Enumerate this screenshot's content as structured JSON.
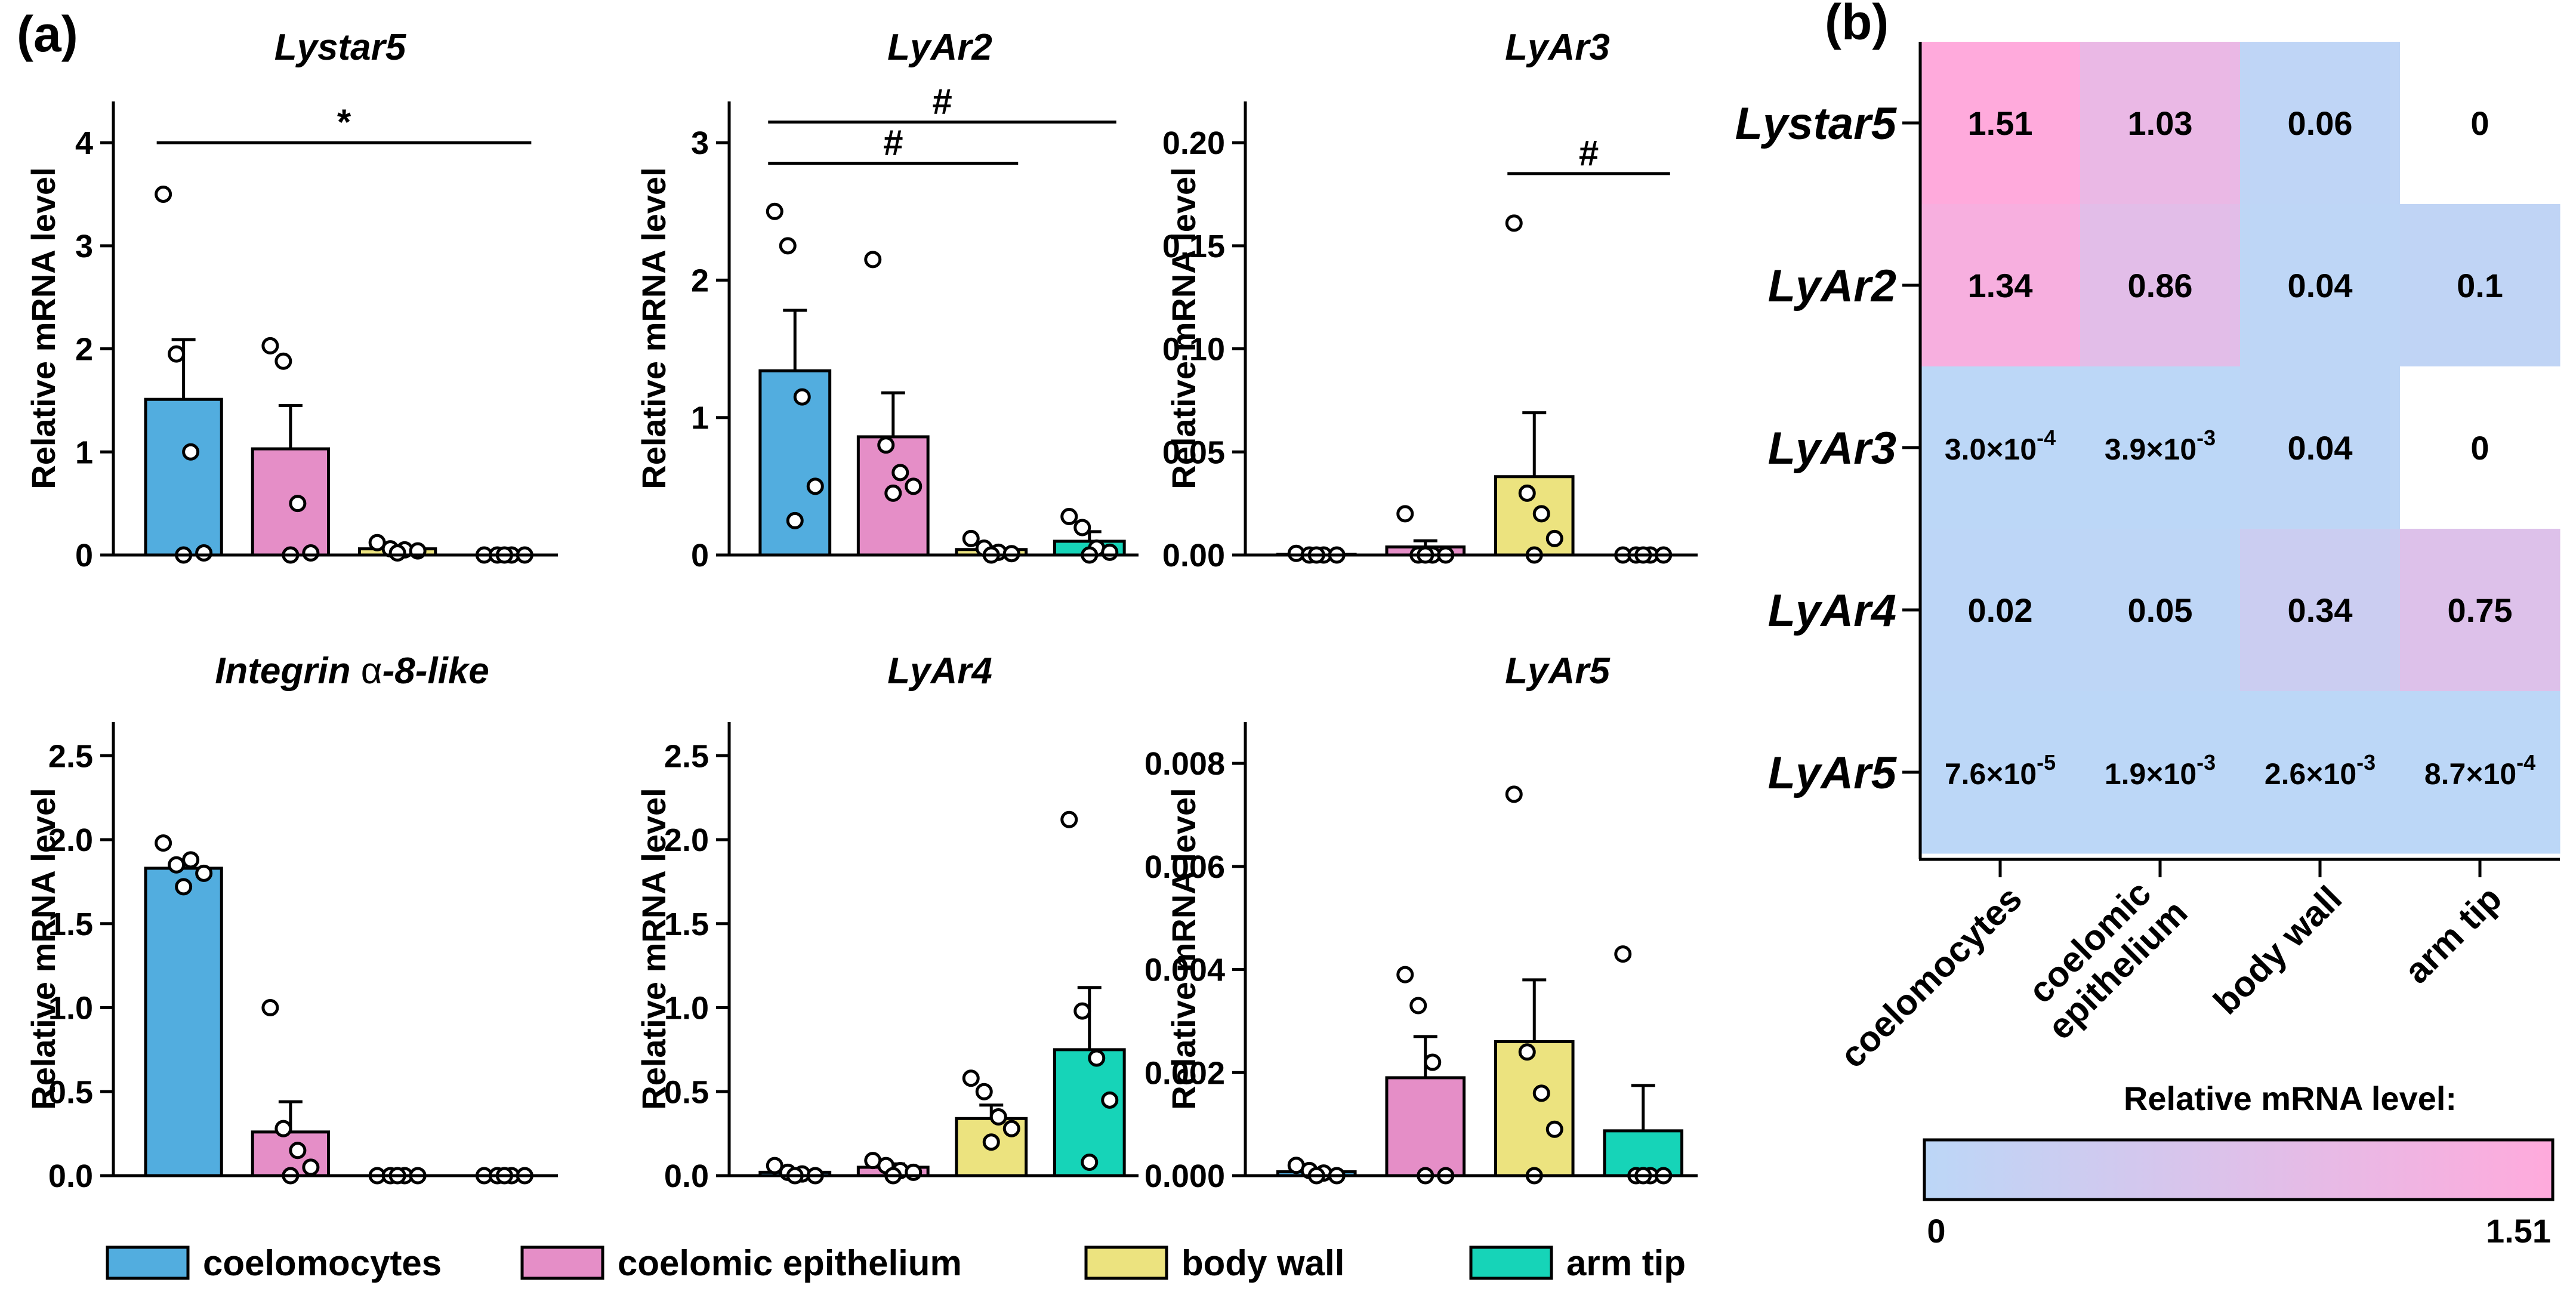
{
  "panels": {
    "a": "(a)",
    "b": "(b)"
  },
  "colors": {
    "coelomocytes": "#52addf",
    "coelomic epithelium": "#e58ec7",
    "body wall": "#ece37f",
    "arm tip": "#16d4b8",
    "heat_low": "#bcd7f7",
    "heat_high": "#ffaadc",
    "axis": "#000000"
  },
  "legend": {
    "items": [
      {
        "label": "coelomocytes",
        "color": "#52addf"
      },
      {
        "label": "coelomic epithelium",
        "color": "#e58ec7"
      },
      {
        "label": "body wall",
        "color": "#ece37f"
      },
      {
        "label": "arm tip",
        "color": "#16d4b8"
      }
    ]
  },
  "chart_data": [
    {
      "type": "bar",
      "title": "Lystar5",
      "ylabel": "Relative mRNA level",
      "categories": [
        "coelomocytes",
        "coelomic epithelium",
        "body wall",
        "arm tip"
      ],
      "values": [
        1.51,
        1.03,
        0.06,
        0.0
      ],
      "errors": [
        0.58,
        0.42,
        0.03,
        0.0
      ],
      "points": [
        [
          3.5,
          1.95,
          1.0,
          0.02,
          0.0
        ],
        [
          2.03,
          1.88,
          0.5,
          0.02,
          0.0
        ],
        [
          0.12,
          0.06,
          0.05,
          0.04,
          0.02
        ],
        [
          0.0,
          0.0,
          0.0,
          0.0,
          0.0
        ]
      ],
      "ylim": [
        0,
        4.4
      ],
      "yticks": [
        0,
        1,
        2,
        3,
        4
      ],
      "ticklabels": [
        "0",
        "1",
        "2",
        "3",
        "4"
      ],
      "significance": [
        {
          "from": 0,
          "to": 3,
          "value": 4.0,
          "label": "*"
        }
      ]
    },
    {
      "type": "bar",
      "title": "LyAr2",
      "ylabel": "Relative mRNA level",
      "categories": [
        "coelomocytes",
        "coelomic epithelium",
        "body wall",
        "arm tip"
      ],
      "values": [
        1.34,
        0.86,
        0.04,
        0.1
      ],
      "errors": [
        0.44,
        0.32,
        0.02,
        0.07
      ],
      "points": [
        [
          2.5,
          2.25,
          1.15,
          0.5,
          0.25
        ],
        [
          2.15,
          0.8,
          0.6,
          0.5,
          0.45
        ],
        [
          0.12,
          0.05,
          0.02,
          0.01,
          0.0
        ],
        [
          0.28,
          0.2,
          0.05,
          0.02,
          0.0
        ]
      ],
      "ylim": [
        0,
        3.3
      ],
      "yticks": [
        0,
        1,
        2,
        3
      ],
      "ticklabels": [
        "0",
        "1",
        "2",
        "3"
      ],
      "significance": [
        {
          "from": 0,
          "to": 3,
          "value": 3.15,
          "label": "#"
        },
        {
          "from": 0,
          "to": 2,
          "value": 2.85,
          "label": "#"
        }
      ]
    },
    {
      "type": "bar",
      "title": "LyAr3",
      "ylabel": "Relative mRNA level",
      "categories": [
        "coelomocytes",
        "coelomic epithelium",
        "body wall",
        "arm tip"
      ],
      "values": [
        0.0003,
        0.0039,
        0.038,
        0.0
      ],
      "errors": [
        0.0002,
        0.003,
        0.031,
        0.0
      ],
      "points": [
        [
          0.0008,
          0.0,
          0.0,
          0.0,
          0.0
        ],
        [
          0.02,
          0.0,
          0.0,
          0.0,
          0.0
        ],
        [
          0.161,
          0.03,
          0.02,
          0.008,
          0.0
        ],
        [
          0.0,
          0.0,
          0.0,
          0.0,
          0.0
        ]
      ],
      "ylim": [
        0,
        0.22
      ],
      "yticks": [
        0,
        0.05,
        0.1,
        0.15,
        0.2
      ],
      "ticklabels": [
        "0.00",
        "0.05",
        "0.10",
        "0.15",
        "0.20"
      ],
      "significance": [
        {
          "from": 2,
          "to": 3,
          "value": 0.185,
          "label": "#"
        }
      ]
    },
    {
      "type": "bar",
      "title": "Integrin α-8-like",
      "ylabel": "Relative mRNA level",
      "categories": [
        "coelomocytes",
        "coelomic epithelium",
        "body wall",
        "arm tip"
      ],
      "values": [
        1.83,
        0.26,
        0.0,
        0.0
      ],
      "errors": [
        0.05,
        0.18,
        0.0,
        0.0
      ],
      "points": [
        [
          1.98,
          1.85,
          1.88,
          1.8,
          1.72
        ],
        [
          1.0,
          0.28,
          0.15,
          0.05,
          0.0
        ],
        [
          0.0,
          0.0,
          0.0,
          0.0,
          0.0
        ],
        [
          0.0,
          0.0,
          0.0,
          0.0,
          0.0
        ]
      ],
      "ylim": [
        0,
        2.7
      ],
      "yticks": [
        0,
        0.5,
        1,
        1.5,
        2,
        2.5
      ],
      "ticklabels": [
        "0.0",
        "0.5",
        "1.0",
        "1.5",
        "2.0",
        "2.5"
      ],
      "significance": []
    },
    {
      "type": "bar",
      "title": "LyAr4",
      "ylabel": "Relative mRNA level",
      "categories": [
        "coelomocytes",
        "coelomic epithelium",
        "body wall",
        "arm tip"
      ],
      "values": [
        0.02,
        0.05,
        0.34,
        0.75
      ],
      "errors": [
        0.01,
        0.02,
        0.08,
        0.37
      ],
      "points": [
        [
          0.06,
          0.02,
          0.01,
          0.0,
          0.0
        ],
        [
          0.09,
          0.06,
          0.03,
          0.02,
          0.0
        ],
        [
          0.58,
          0.5,
          0.35,
          0.28,
          0.2
        ],
        [
          2.12,
          0.98,
          0.7,
          0.45,
          0.08
        ]
      ],
      "ylim": [
        0,
        2.7
      ],
      "yticks": [
        0,
        0.5,
        1,
        1.5,
        2,
        2.5
      ],
      "ticklabels": [
        "0.0",
        "0.5",
        "1.0",
        "1.5",
        "2.0",
        "2.5"
      ],
      "significance": []
    },
    {
      "type": "bar",
      "title": "LyAr5",
      "ylabel": "Relative mRNA level",
      "categories": [
        "coelomocytes",
        "coelomic epithelium",
        "body wall",
        "arm tip"
      ],
      "values": [
        7.6e-05,
        0.0019,
        0.0026,
        0.00087
      ],
      "errors": [
        3e-05,
        0.0008,
        0.0012,
        0.00088
      ],
      "points": [
        [
          0.0002,
          0.0001,
          5e-05,
          0.0,
          0.0
        ],
        [
          0.0039,
          0.0033,
          0.0022,
          0.0,
          0.0
        ],
        [
          0.0074,
          0.0024,
          0.0016,
          0.0009,
          0.0
        ],
        [
          0.0043,
          0.0,
          0.0,
          0.0,
          0.0
        ]
      ],
      "ylim": [
        0,
        0.0088
      ],
      "yticks": [
        0,
        0.002,
        0.004,
        0.006,
        0.008
      ],
      "ticklabels": [
        "0.000",
        "0.002",
        "0.004",
        "0.006",
        "0.008"
      ],
      "significance": []
    },
    {
      "type": "heatmap",
      "rows": [
        "Lystar5",
        "LyAr2",
        "LyAr3",
        "LyAr4",
        "LyAr5"
      ],
      "columns": [
        "coelomocytes",
        "coelomic epithelium",
        "body wall",
        "arm tip"
      ],
      "values": [
        [
          1.51,
          1.03,
          0.06,
          0.0
        ],
        [
          1.34,
          0.86,
          0.04,
          0.1
        ],
        [
          0.0003,
          0.0039,
          0.04,
          0.0
        ],
        [
          0.02,
          0.05,
          0.34,
          0.75
        ],
        [
          7.6e-05,
          0.0019,
          0.0026,
          0.00087
        ]
      ],
      "cell_labels": [
        [
          {
            "t": "1.51"
          },
          {
            "t": "1.03"
          },
          {
            "t": "0.06"
          },
          {
            "t": "0"
          }
        ],
        [
          {
            "t": "1.34"
          },
          {
            "t": "0.86"
          },
          {
            "t": "0.04"
          },
          {
            "t": "0.1"
          }
        ],
        [
          {
            "t": "3.0×10",
            "e": "-4"
          },
          {
            "t": "3.9×10",
            "e": "-3"
          },
          {
            "t": "0.04"
          },
          {
            "t": "0"
          }
        ],
        [
          {
            "t": "0.02"
          },
          {
            "t": "0.05"
          },
          {
            "t": "0.34"
          },
          {
            "t": "0.75"
          }
        ],
        [
          {
            "t": "7.6×10",
            "e": "-5"
          },
          {
            "t": "1.9×10",
            "e": "-3"
          },
          {
            "t": "2.6×10",
            "e": "-3"
          },
          {
            "t": "8.7×10",
            "e": "-4"
          }
        ]
      ],
      "white_cells": [
        [
          0,
          3
        ],
        [
          2,
          3
        ]
      ],
      "column_labels": [
        [
          "coelomocytes"
        ],
        [
          "coelomic",
          "epithelium"
        ],
        [
          "body wall"
        ],
        [
          "arm tip"
        ]
      ],
      "colorbar": {
        "title": "Relative mRNA level:",
        "min": 0,
        "max": 1.51,
        "min_label": "0",
        "max_label": "1.51"
      }
    }
  ]
}
